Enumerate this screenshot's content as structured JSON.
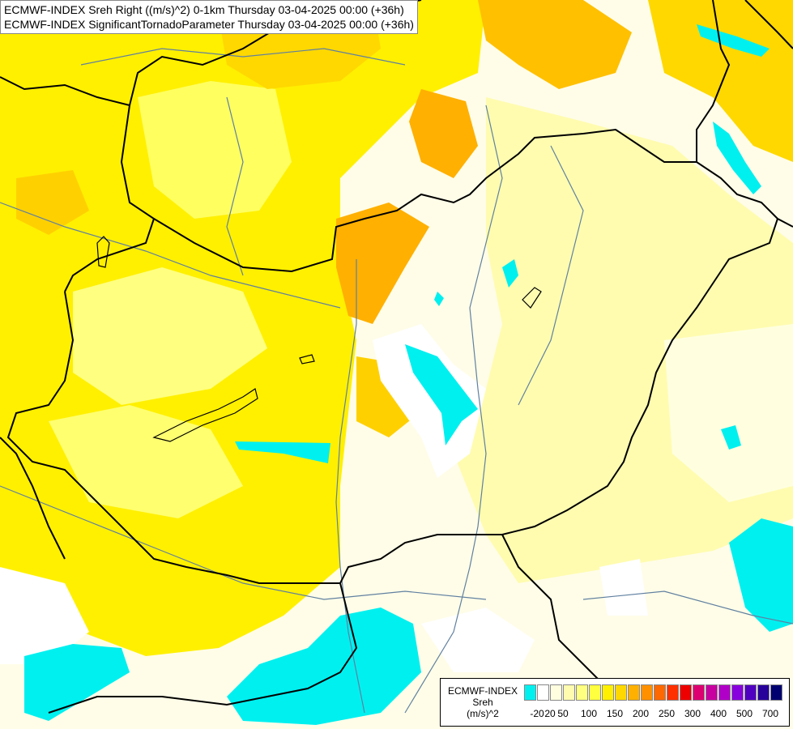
{
  "titles": {
    "line1": "ECMWF-INDEX Sreh Right ((m/s)^2) 0-1km Thursday 03-04-2025 00:00 (+36h)",
    "line2": "ECMWF-INDEX SignificantTornadoParameter Thursday 03-04-2025 00:00 (+36h)"
  },
  "legend": {
    "title": "ECMWF-INDEX",
    "variable": "Sreh",
    "unit": "(m/s)^2",
    "colors": [
      "#00f0f0",
      "#ffffff",
      "#ffffe0",
      "#fffcb0",
      "#ffff80",
      "#ffff40",
      "#fff000",
      "#ffd800",
      "#ffb000",
      "#ff9000",
      "#ff6800",
      "#ff3000",
      "#ee0000",
      "#dd0070",
      "#c800a0",
      "#b000c8",
      "#8800dd",
      "#5000c0",
      "#28009a",
      "#000070"
    ],
    "ticks": [
      "-20",
      "20",
      "50",
      "100",
      "150",
      "200",
      "250",
      "300",
      "400",
      "500",
      "700"
    ]
  },
  "colors": {
    "cyan": "#00f0f0",
    "border": "#000000",
    "rivers": "#6080a0"
  }
}
